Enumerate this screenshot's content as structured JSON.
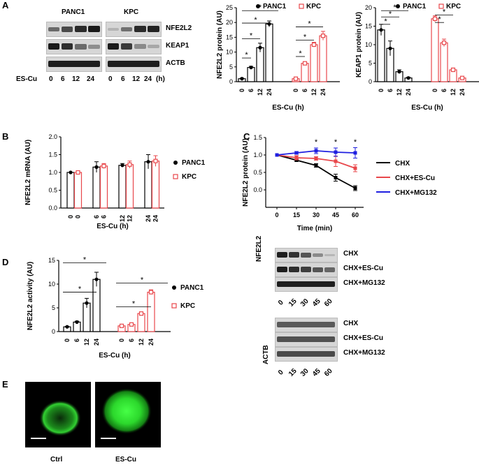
{
  "panels": {
    "a": "A",
    "b": "B",
    "c": "C",
    "d": "D",
    "e": "E"
  },
  "blotA": {
    "groups": [
      "PANC1",
      "KPC"
    ],
    "proteins": [
      "NFE2L2",
      "KEAP1",
      "ACTB"
    ],
    "row_label": "ES-Cu",
    "doses": [
      "0",
      "6",
      "12",
      "24"
    ],
    "unit": "(h)"
  },
  "blotC": {
    "ylabel_a": "NFE2L2",
    "ylabel_b": "ACTB",
    "treatments": [
      "CHX",
      "CHX+ES-Cu",
      "CHX+MG132"
    ],
    "times": [
      "0",
      "15",
      "30",
      "45",
      "60"
    ]
  },
  "micrograph": {
    "labels": [
      "Ctrl",
      "ES-Cu"
    ]
  },
  "colors": {
    "panc1": "#000000",
    "kpc": "#e8474b",
    "mg132": "#1f1fe0"
  },
  "chart_data": [
    {
      "id": "A-NFE2L2",
      "type": "bar",
      "ylabel": "NFE2L2 protein (AU)",
      "xlabel": "ES-Cu (h)",
      "ylim": [
        0,
        25
      ],
      "yticks": [
        0,
        5,
        10,
        15,
        20,
        25
      ],
      "categories": [
        "0",
        "6",
        "12",
        "24"
      ],
      "legend": [
        {
          "name": "PANC1",
          "marker": "dot"
        },
        {
          "name": "KPC",
          "marker": "square"
        }
      ],
      "series": [
        {
          "name": "PANC1",
          "values": [
            1,
            4.8,
            11.5,
            19.5
          ],
          "err": [
            0.2,
            0.4,
            1.5,
            1.0
          ]
        },
        {
          "name": "KPC",
          "values": [
            1,
            6.2,
            12.5,
            15.5
          ],
          "err": [
            0.3,
            0.5,
            0.8,
            1.5
          ]
        }
      ],
      "sig": "*"
    },
    {
      "id": "A-KEAP1",
      "type": "bar",
      "ylabel": "KEAP1 protein (AU)",
      "xlabel": "ES-Cu (h)",
      "ylim": [
        0,
        20
      ],
      "yticks": [
        0,
        5,
        10,
        15,
        20
      ],
      "categories": [
        "0",
        "6",
        "12",
        "24"
      ],
      "legend": [
        {
          "name": "PANC1",
          "marker": "dot"
        },
        {
          "name": "KPC",
          "marker": "square"
        }
      ],
      "series": [
        {
          "name": "PANC1",
          "values": [
            14,
            9,
            2.7,
            1
          ],
          "err": [
            1.5,
            2,
            0.5,
            0.2
          ]
        },
        {
          "name": "KPC",
          "values": [
            17,
            10.5,
            3.2,
            1
          ],
          "err": [
            0.8,
            1,
            0.5,
            0.2
          ]
        }
      ],
      "sig": "*"
    },
    {
      "id": "B",
      "type": "bar",
      "ylabel": "NFE2L2 mRNA (AU)",
      "xlabel": "ES-Cu (h)",
      "ylim": [
        0,
        2
      ],
      "yticks": [
        "0.0",
        "0.5",
        "1.0",
        "1.5",
        "2.0"
      ],
      "categories": [
        "0",
        "6",
        "12",
        "24"
      ],
      "series": [
        {
          "name": "PANC1",
          "values": [
            1,
            1.15,
            1.2,
            1.3
          ],
          "err": [
            0,
            0.15,
            0.05,
            0.2
          ]
        },
        {
          "name": "KPC",
          "values": [
            1,
            1.18,
            1.22,
            1.32
          ],
          "err": [
            0,
            0.07,
            0.1,
            0.15
          ]
        }
      ]
    },
    {
      "id": "C",
      "type": "line",
      "ylabel": "NFE2L2 protein (AU)",
      "xlabel": "Time (min)",
      "ylim": [
        -0.5,
        1.5
      ],
      "yticks": [
        "0.0",
        "0.5",
        "1.0",
        "1.5"
      ],
      "x": [
        0,
        15,
        30,
        45,
        60
      ],
      "series": [
        {
          "name": "CHX",
          "values": [
            1,
            0.85,
            0.7,
            0.35,
            0.05
          ],
          "err": [
            0,
            0.03,
            0.05,
            0.1,
            0.07
          ]
        },
        {
          "name": "CHX+ES-Cu",
          "values": [
            1,
            0.92,
            0.9,
            0.82,
            0.62
          ],
          "err": [
            0,
            0.06,
            0.05,
            0.15,
            0.1
          ]
        },
        {
          "name": "CHX+MG132",
          "values": [
            1,
            1.06,
            1.12,
            1.08,
            1.06
          ],
          "err": [
            0,
            0.04,
            0.08,
            0.12,
            0.15
          ]
        }
      ],
      "sig": "*"
    },
    {
      "id": "D",
      "type": "bar",
      "ylabel": "NFE2L2 activity (AU)",
      "xlabel": "ES-Cu (h)",
      "ylim": [
        0,
        15
      ],
      "yticks": [
        0,
        5,
        10,
        15
      ],
      "categories": [
        "0",
        "6",
        "12",
        "24"
      ],
      "series": [
        {
          "name": "PANC1",
          "values": [
            1,
            2,
            6,
            11
          ],
          "err": [
            0.1,
            0.2,
            1,
            1.5
          ]
        },
        {
          "name": "KPC",
          "values": [
            1.2,
            1.5,
            3.8,
            8.3
          ],
          "err": [
            0.1,
            0.1,
            0.3,
            0.5
          ]
        }
      ],
      "sig": "*"
    }
  ]
}
